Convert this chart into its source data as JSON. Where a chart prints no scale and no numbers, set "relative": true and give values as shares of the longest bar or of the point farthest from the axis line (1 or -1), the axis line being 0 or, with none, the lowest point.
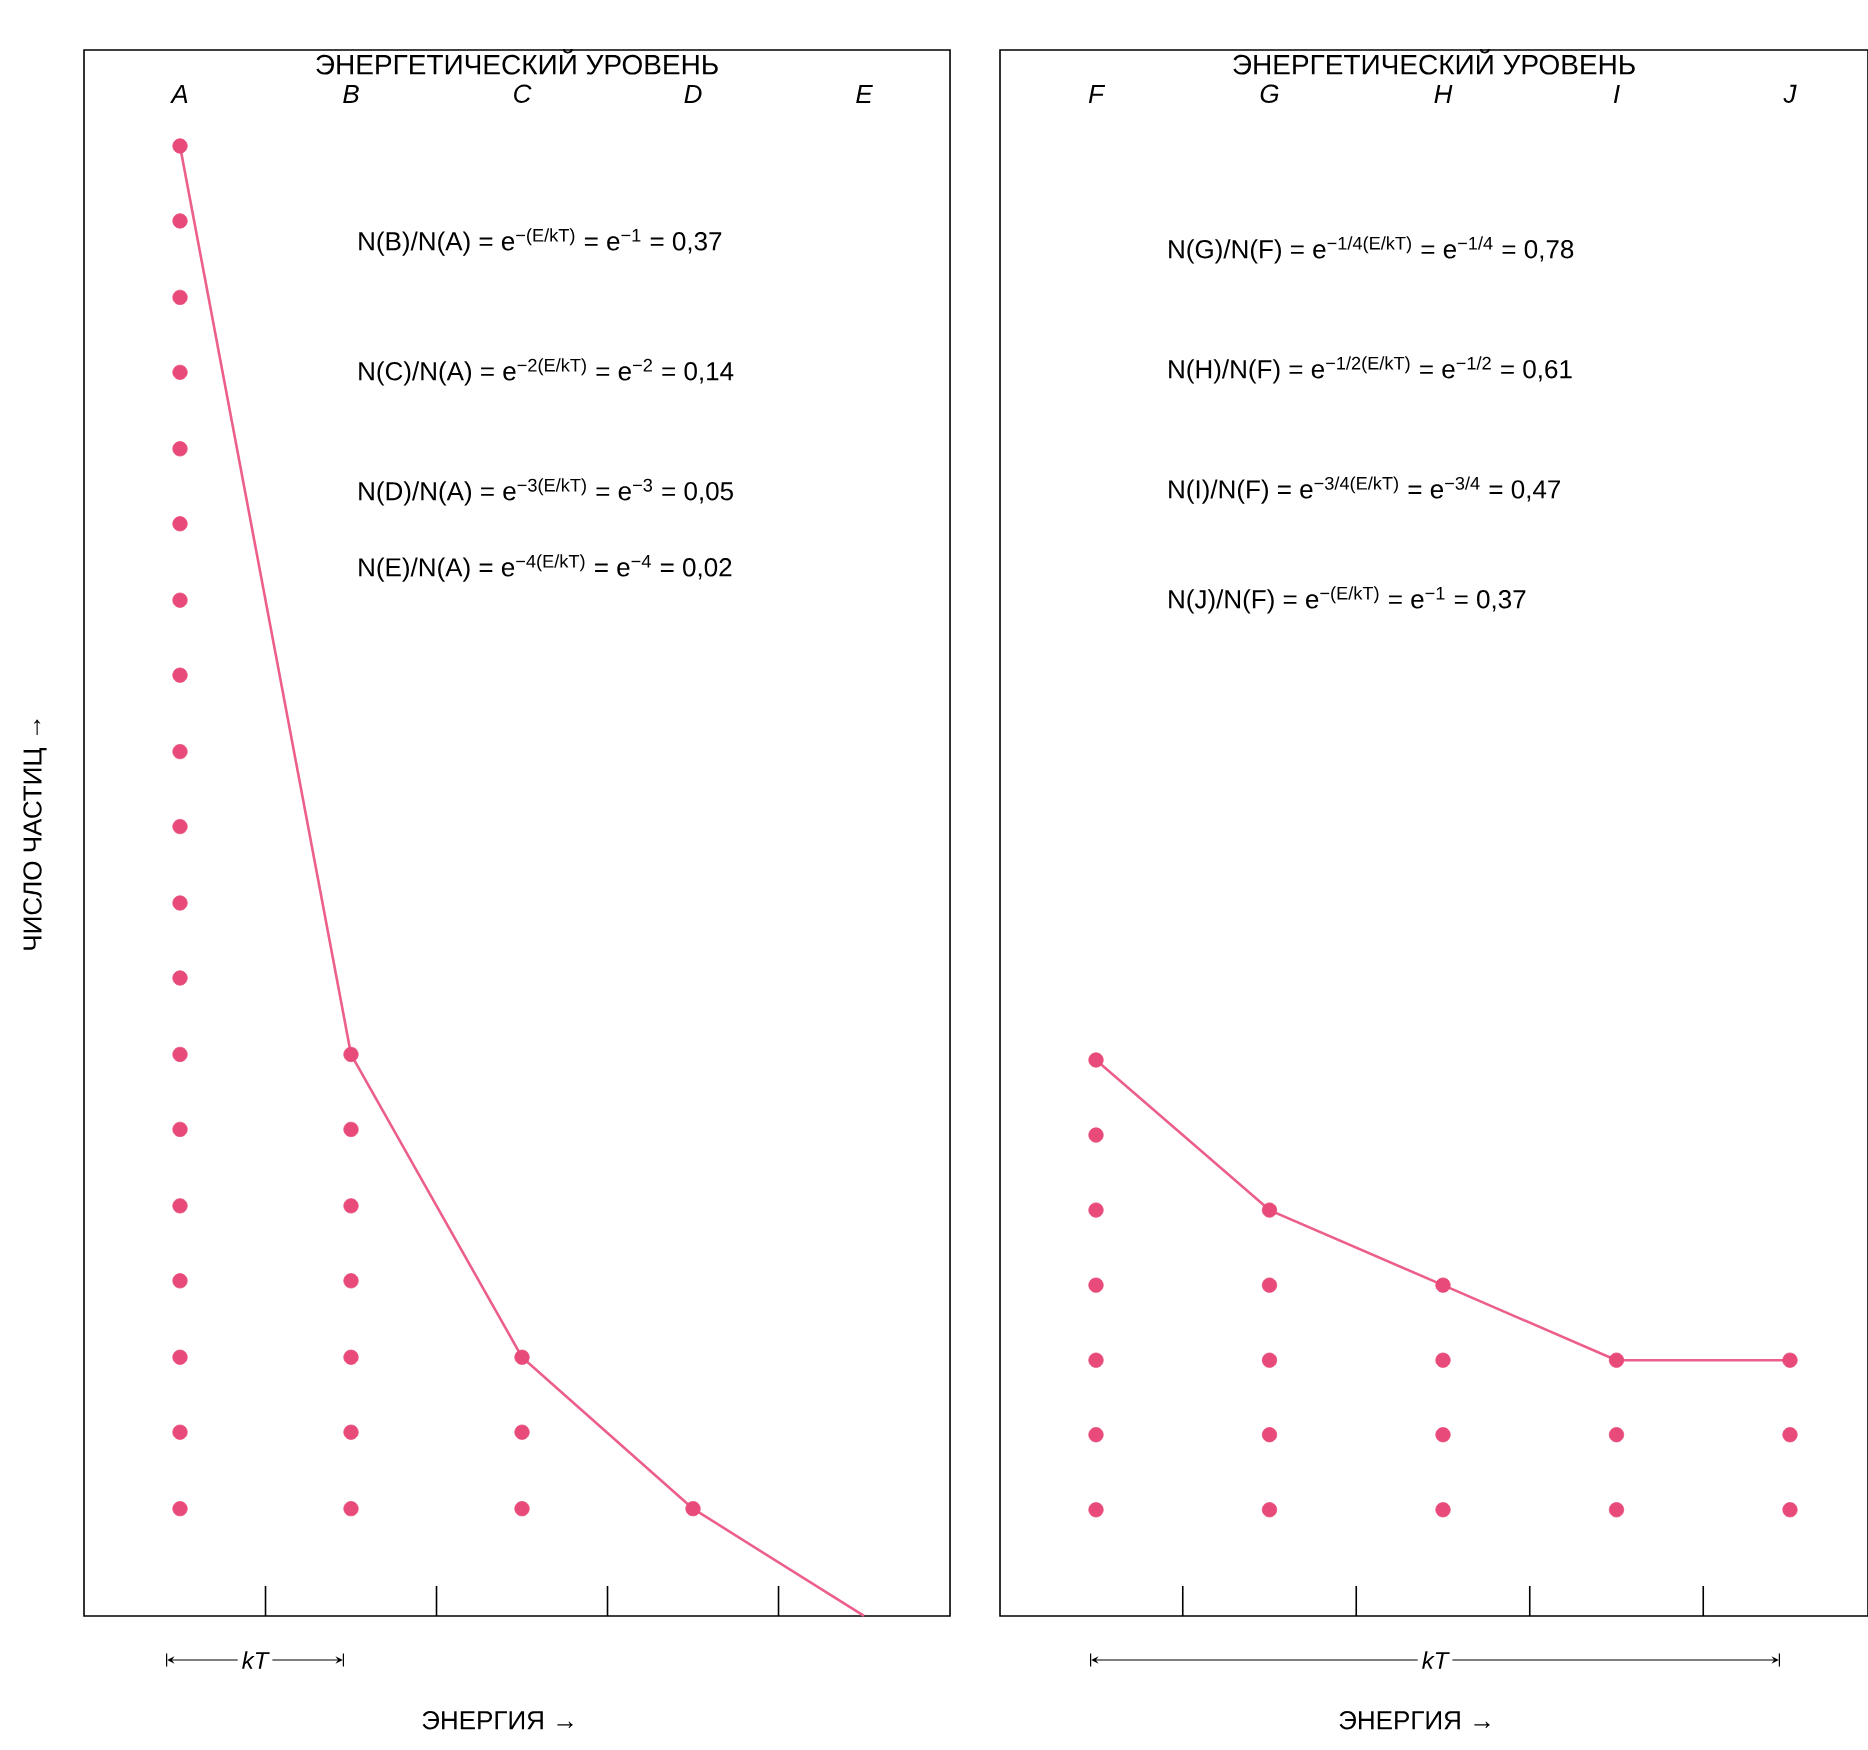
{
  "chart_data": [
    {
      "type": "line",
      "relative": true,
      "title": "ЭНЕРГЕТИЧЕСКИЙ УРОВЕНЬ",
      "xlabel": "ЭНЕРГИЯ →",
      "ylabel": "ЧИСЛО ЧАСТИЦ →",
      "categories": [
        "A",
        "B",
        "C",
        "D",
        "E"
      ],
      "series": [
        {
          "type": "scatter",
          "color": "#e84a7a",
          "x": [
            "A",
            "A",
            "A",
            "A",
            "A",
            "A",
            "A",
            "A",
            "A",
            "A",
            "A",
            "A",
            "A",
            "A",
            "A",
            "A",
            "A",
            "A",
            "A",
            "B",
            "B",
            "B",
            "B",
            "B",
            "B",
            "B",
            "C",
            "C",
            "C",
            "D"
          ],
          "values": [
            0.073,
            0.125,
            0.176,
            0.228,
            0.279,
            0.331,
            0.382,
            0.434,
            0.485,
            0.537,
            0.588,
            0.64,
            0.691,
            0.743,
            0.794,
            0.846,
            0.897,
            0.949,
            1.0,
            0.073,
            0.125,
            0.176,
            0.228,
            0.279,
            0.331,
            0.382,
            0.073,
            0.125,
            0.176,
            0.073
          ]
        },
        {
          "type": "line",
          "color": "#ec5f8a",
          "values": [
            1.0,
            0.382,
            0.176,
            0.073,
            0
          ]
        }
      ],
      "annotations": [
        "N(B)/N(A) = e$^{−(E/kT)}$ = e$^{−1}$ = 0,37",
        "N(C)/N(A) = e$^{−2(E/kT)}$ = e$^{−2}$ = 0,14",
        "N(D)/N(A) = e$^{−3(E/kT)}$ = e$^{−3}$ = 0,05",
        "N(E)/N(A) = e$^{−4(E/kT)}$ = e$^{−4}$ = 0,02",
        "kT"
      ]
    },
    {
      "type": "line",
      "relative": true,
      "title": "ЭНЕРГЕТИЧЕСКИЙ УРОВЕНЬ",
      "xlabel": "ЭНЕРГИЯ →",
      "categories": [
        "F",
        "G",
        "H",
        "I",
        "J"
      ],
      "series": [
        {
          "type": "scatter",
          "color": "#e84a7a",
          "x": [
            "F",
            "F",
            "F",
            "F",
            "F",
            "F",
            "F",
            "G",
            "G",
            "G",
            "G",
            "G",
            "H",
            "H",
            "H",
            "H",
            "I",
            "I",
            "I",
            "J",
            "J",
            "J"
          ],
          "values": [
            0.191,
            0.326,
            0.46,
            0.595,
            0.73,
            0.865,
            1.0,
            0.191,
            0.326,
            0.46,
            0.595,
            0.73,
            0.191,
            0.326,
            0.46,
            0.595,
            0.191,
            0.326,
            0.46,
            0.191,
            0.326,
            0.46
          ]
        },
        {
          "type": "line",
          "color": "#ec5f8a",
          "values": [
            1.0,
            0.73,
            0.595,
            0.46,
            0.46
          ]
        }
      ],
      "annotations": [
        "N(G)/N(F) = e$^{−1/4(E/kT)}$ = e$^{−1/4}$ = 0,78",
        "N(H)/N(F) = e$^{−1/2(E/kT)}$ = e$^{−1/2}$ = 0,61",
        "N(I)/N(F) = e$^{−3/4(E/kT)}$ = e$^{−3/4}$ = 0,47",
        "N(J)/N(F) = e$^{−(E/kT)}$ = e$^{−1}$ = 0,37",
        "kT"
      ]
    }
  ]
}
